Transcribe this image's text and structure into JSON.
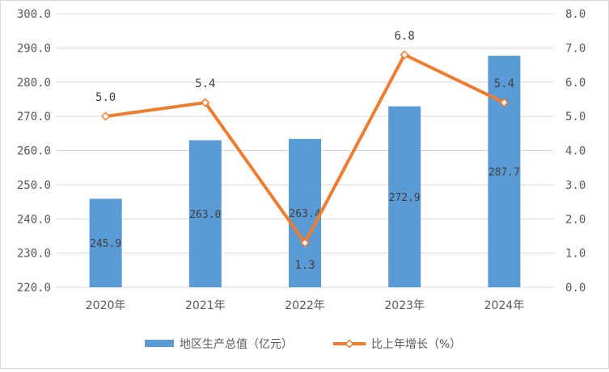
{
  "chart_data": {
    "type": "bar",
    "categories": [
      "2020年",
      "2021年",
      "2022年",
      "2023年",
      "2024年"
    ],
    "series": [
      {
        "name": "地区生产总值（亿元）",
        "type": "bar",
        "axis": "left",
        "values": [
          245.9,
          263.0,
          263.4,
          272.9,
          287.7
        ],
        "labels": [
          "245.9",
          "263.0",
          "263.4",
          "272.9",
          "287.7"
        ],
        "color": "#5b9bd5"
      },
      {
        "name": "比上年增长（%）",
        "type": "line",
        "axis": "right",
        "values": [
          5.0,
          5.4,
          1.3,
          6.8,
          5.4
        ],
        "labels": [
          "5.0",
          "5.4",
          "1.3",
          "6.8",
          "5.4"
        ],
        "color": "#ed7d31"
      }
    ],
    "y_left": {
      "min": 220,
      "max": 300,
      "step": 10,
      "ticks": [
        "220.0",
        "230.0",
        "240.0",
        "250.0",
        "260.0",
        "270.0",
        "280.0",
        "290.0",
        "300.0"
      ]
    },
    "y_right": {
      "min": 0,
      "max": 8,
      "step": 1,
      "ticks": [
        "0.0",
        "1.0",
        "2.0",
        "3.0",
        "4.0",
        "5.0",
        "6.0",
        "7.0",
        "8.0"
      ]
    },
    "grid": true,
    "legend": "bottom"
  }
}
